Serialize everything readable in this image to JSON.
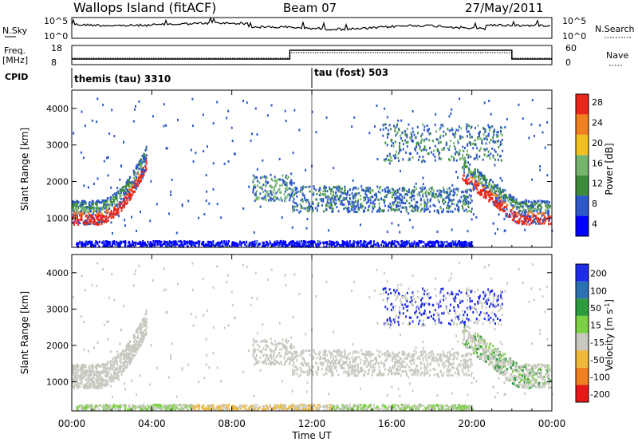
{
  "header": {
    "station": "Wallops Island (fitACF)",
    "beam": "Beam 07",
    "date": "27/May/2011"
  },
  "nsky": {
    "label": "N.Sky",
    "ytick_top": "10^5",
    "ytick_bottom": "10^0",
    "right_label": "N.Search",
    "right_tick_top": "10^5",
    "right_tick_bottom": "10^0"
  },
  "freq": {
    "label_line1": "Freq.",
    "label_line2": "[MHz]",
    "ytick_top": "18",
    "ytick_bottom": "8",
    "right_label": "Nave",
    "right_tick_top": "60",
    "right_tick_bottom": "0"
  },
  "cpid": {
    "label": "CPID",
    "mode1": "themis (tau) 3310",
    "mode2": "tau (fost) 503",
    "switch_time_hours": 12.0
  },
  "chart_data": [
    {
      "type": "heatmap",
      "name": "power",
      "ylabel": "Slant Range [km]",
      "xlabel": "Time UT",
      "xlim": [
        0,
        24
      ],
      "ylim": [
        200,
        4500
      ],
      "x_tick_labels": [
        "00:00",
        "04:00",
        "08:00",
        "12:00",
        "16:00",
        "20:00",
        "00:00"
      ],
      "x_tick_hours": [
        0,
        4,
        8,
        12,
        16,
        20,
        24
      ],
      "y_tick_labels": [
        "1000",
        "2000",
        "3000",
        "4000"
      ],
      "y_ticks": [
        1000,
        2000,
        3000,
        4000
      ],
      "colorbar": {
        "label": "Power [dB]",
        "tick_labels": [
          "4",
          "8",
          "12",
          "16",
          "20",
          "24",
          "28"
        ],
        "colors": [
          "#0000ff",
          "#2c58c8",
          "#3c8c3c",
          "#74b46c",
          "#f0c020",
          "#f08020",
          "#e82818"
        ]
      }
    },
    {
      "type": "heatmap",
      "name": "velocity",
      "ylabel": "Slant Range [km]",
      "xlabel": "Time UT",
      "xlim": [
        0,
        24
      ],
      "ylim": [
        200,
        4500
      ],
      "x_tick_labels": [
        "00:00",
        "04:00",
        "08:00",
        "12:00",
        "16:00",
        "20:00",
        "00:00"
      ],
      "x_tick_hours": [
        0,
        4,
        8,
        12,
        16,
        20,
        24
      ],
      "y_tick_labels": [
        "1000",
        "2000",
        "3000",
        "4000"
      ],
      "y_ticks": [
        1000,
        2000,
        3000,
        4000
      ],
      "colorbar": {
        "label": "Velocity [m s",
        "label_sup": "-1",
        "label_end": "]",
        "tick_labels": [
          "200",
          "100",
          "50",
          "15",
          "-15",
          "-50",
          "-100",
          "-200"
        ],
        "colors": [
          "#1c2ce8",
          "#2c70b4",
          "#2c9c3c",
          "#7cd044",
          "#c8c8c0",
          "#f0b838",
          "#f08020",
          "#e81818"
        ]
      }
    }
  ],
  "xaxis_title": "Time UT"
}
